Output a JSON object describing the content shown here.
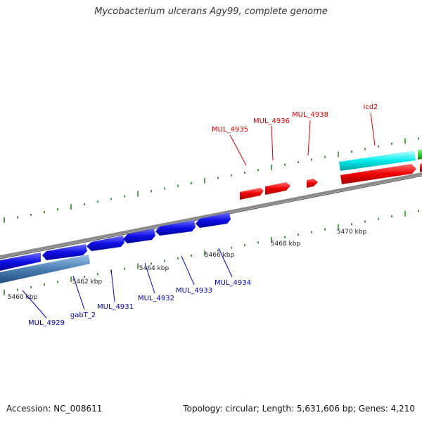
{
  "title": "Mycobacterium ulcerans Agy99, complete genome",
  "footer": {
    "accession": "Accession: NC_008611",
    "stats": "Topology: circular; Length: 5,631,606 bp; Genes: 4,210"
  },
  "colors": {
    "backbone": "#808080",
    "tick": "#2e8b2e",
    "forward_gene": "#ff0000",
    "reverse_gene": "#0000ee",
    "forward_label": "#dd0000",
    "reverse_label": "#0000bb",
    "cyan_feature": "#00e8e8",
    "steelblue_feature": "#4a7fb5",
    "green_feature": "#33cc33"
  },
  "ticks": [
    "5460 kbp",
    "5462 kbp",
    "5464 kbp",
    "5466 kbp",
    "5468 kbp",
    "5470 kbp"
  ],
  "genes_forward": [
    "MUL_4935",
    "MUL_4936",
    "MUL_4938",
    "icd2"
  ],
  "genes_reverse": [
    "MUL_4929",
    "gabT_2",
    "MUL_4931",
    "MUL_4932",
    "MUL_4933",
    "MUL_4934"
  ]
}
